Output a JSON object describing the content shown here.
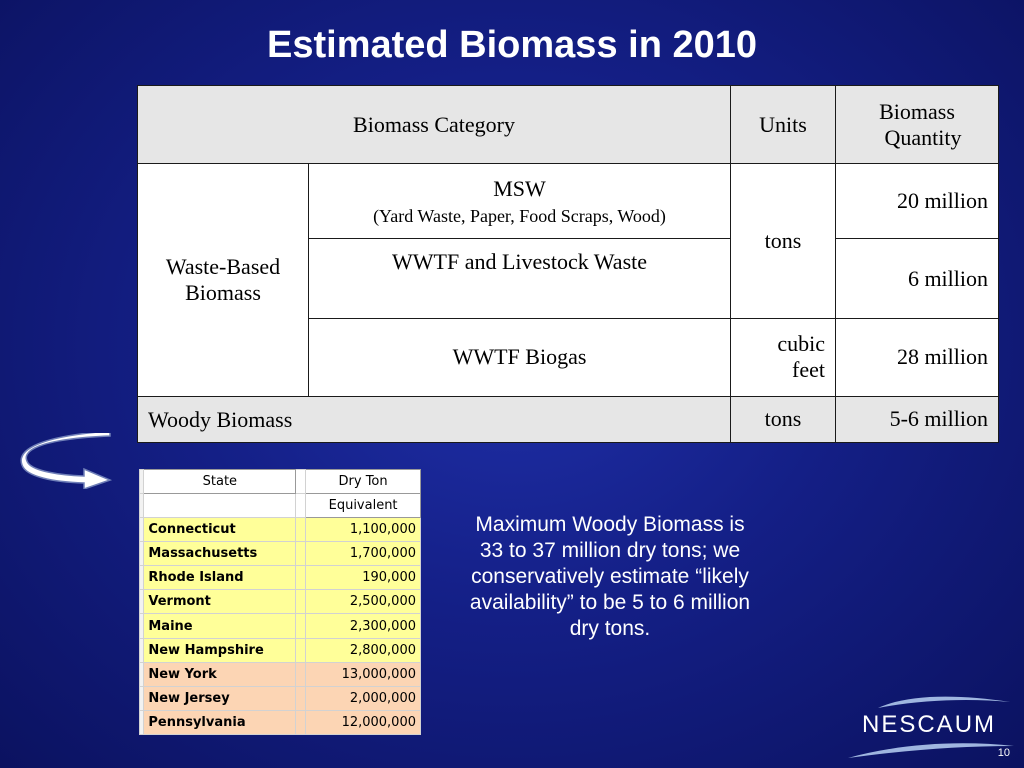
{
  "slide": {
    "title": "Estimated Biomass in 2010",
    "page_number": "10",
    "note": "Maximum Woody Biomass is 33 to 37 million dry tons; we conservatively estimate “likely availability” to be 5 to 6 million dry tons.",
    "logo_text": "NESCAUM"
  },
  "biomass_table": {
    "headers": {
      "category": "Biomass Category",
      "units": "Units",
      "quantity_line1": "Biomass",
      "quantity_line2": "Quantity"
    },
    "waste_group_line1": "Waste-Based",
    "waste_group_line2": "Biomass",
    "rows": [
      {
        "category": "MSW",
        "detail": "(Yard Waste, Paper, Food Scraps, Wood)",
        "quantity": "20 million"
      },
      {
        "category": "WWTF and Livestock Waste",
        "quantity": "6 million"
      },
      {
        "category": "WWTF Biogas",
        "units_line1": "cubic",
        "units_line2": "feet",
        "quantity": "28 million"
      },
      {
        "category": "Woody Biomass",
        "units": "tons",
        "quantity": "5-6 million"
      }
    ],
    "shared_units": "tons"
  },
  "state_table": {
    "header_state": "State",
    "header_value_line1": "Dry Ton",
    "header_value_line2": "Equivalent",
    "rows": [
      {
        "state": "Connecticut",
        "value": "1,100,000",
        "color": "#ffff99"
      },
      {
        "state": "Massachusetts",
        "value": "1,700,000",
        "color": "#ffff99"
      },
      {
        "state": "Rhode Island",
        "value": "190,000",
        "color": "#ffff99"
      },
      {
        "state": "Vermont",
        "value": "2,500,000",
        "color": "#ffff99"
      },
      {
        "state": "Maine",
        "value": "2,300,000",
        "color": "#ffff99"
      },
      {
        "state": "New Hampshire",
        "value": "2,800,000",
        "color": "#ffff99"
      },
      {
        "state": "New York",
        "value": "13,000,000",
        "color": "#fcd5b4"
      },
      {
        "state": "New Jersey",
        "value": "2,000,000",
        "color": "#fcd5b4"
      },
      {
        "state": "Pennsylvania",
        "value": "12,000,000",
        "color": "#fcd5b4"
      }
    ]
  },
  "colors": {
    "background": "#141f86",
    "header_fill": "#e6e6e6",
    "new_england_fill": "#ffff99",
    "mid_atlantic_fill": "#fcd5b4"
  },
  "icons": [
    "curved-arrow-icon",
    "nescaum-wave-logo"
  ]
}
